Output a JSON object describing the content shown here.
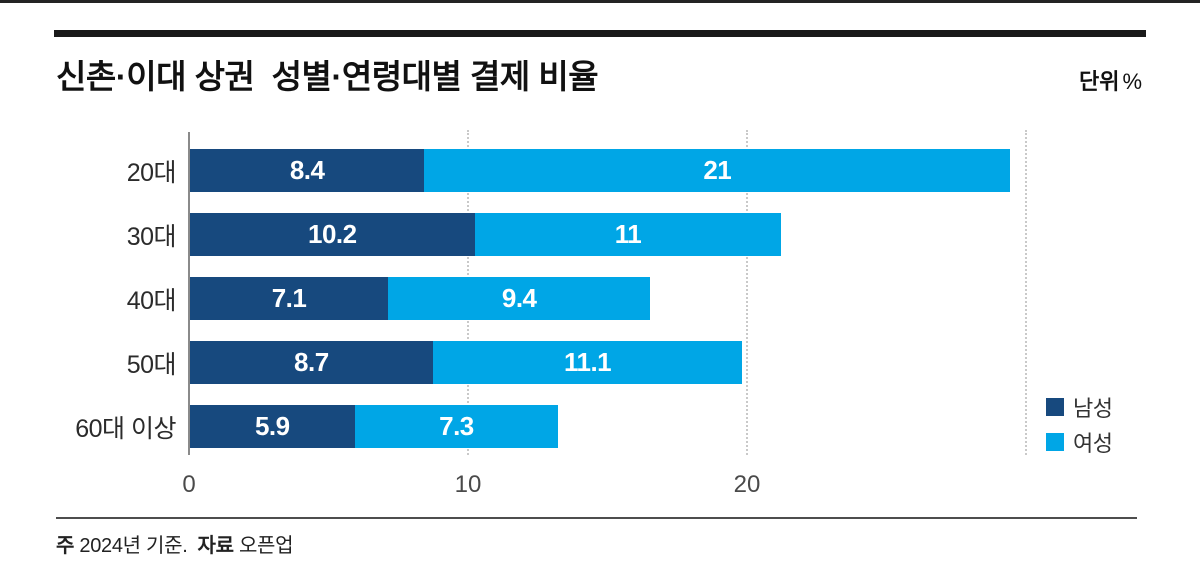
{
  "header": {
    "title": "신촌·이대 상권  성별·연령대별 결제 비율",
    "unit_bold": "단위",
    "unit_symbol": "%"
  },
  "colors": {
    "male": "#17497E",
    "female": "#00A6E6",
    "axis_line": "#8a8a8a",
    "gridline": "#c9c9c9"
  },
  "legend": [
    {
      "label": "남성",
      "color": "#17497E"
    },
    {
      "label": "여성",
      "color": "#00A6E6"
    }
  ],
  "chart_data": {
    "type": "bar",
    "orientation": "horizontal-stacked",
    "title": "신촌·이대 상권 성별·연령대별 결제 비율",
    "unit": "%",
    "categories": [
      "20대",
      "30대",
      "40대",
      "50대",
      "60대 이상"
    ],
    "series": [
      {
        "name": "남성",
        "color": "#17497E",
        "values": [
          8.4,
          10.2,
          7.1,
          8.7,
          5.9
        ]
      },
      {
        "name": "여성",
        "color": "#00A6E6",
        "values": [
          21,
          11,
          9.4,
          11.1,
          7.3
        ]
      }
    ],
    "x_ticks": [
      0,
      10,
      20
    ],
    "grid_x": [
      10,
      20,
      30
    ],
    "xlim": [
      0,
      32
    ],
    "legend_position": "right-bottom",
    "value_labels": "inside-white-bold"
  },
  "footer": {
    "note_label": "주",
    "note_text": "2024년 기준.",
    "source_label": "자료",
    "source_text": "오픈업"
  }
}
